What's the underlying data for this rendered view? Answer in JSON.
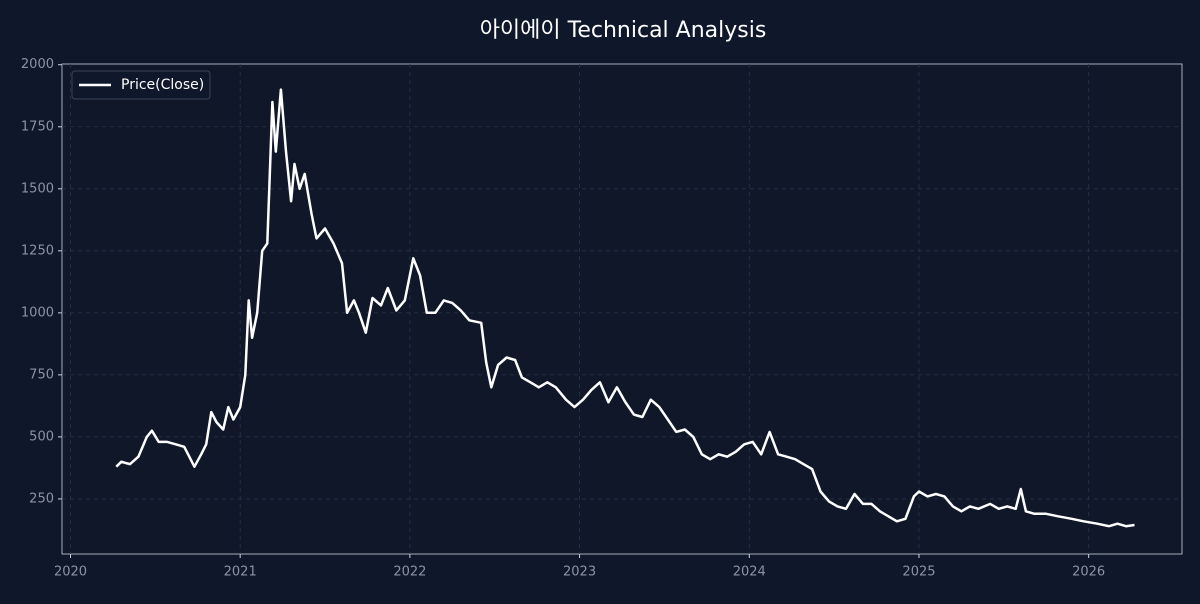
{
  "chart_data": {
    "type": "line",
    "title": "아이에이 Technical Analysis",
    "x": [
      2020.27,
      2020.3,
      2020.35,
      2020.4,
      2020.45,
      2020.48,
      2020.52,
      2020.57,
      2020.62,
      2020.67,
      2020.7,
      2020.73,
      2020.77,
      2020.8,
      2020.83,
      2020.86,
      2020.9,
      2020.93,
      2020.96,
      2021.0,
      2021.03,
      2021.05,
      2021.07,
      2021.1,
      2021.13,
      2021.16,
      2021.19,
      2021.21,
      2021.24,
      2021.27,
      2021.3,
      2021.32,
      2021.35,
      2021.38,
      2021.42,
      2021.45,
      2021.5,
      2021.55,
      2021.6,
      2021.63,
      2021.67,
      2021.7,
      2021.74,
      2021.78,
      2021.83,
      2021.87,
      2021.92,
      2021.97,
      2022.02,
      2022.06,
      2022.1,
      2022.15,
      2022.2,
      2022.25,
      2022.3,
      2022.35,
      2022.42,
      2022.45,
      2022.48,
      2022.52,
      2022.57,
      2022.62,
      2022.66,
      2022.71,
      2022.76,
      2022.81,
      2022.86,
      2022.92,
      2022.97,
      2023.02,
      2023.07,
      2023.12,
      2023.17,
      2023.22,
      2023.27,
      2023.32,
      2023.37,
      2023.42,
      2023.47,
      2023.52,
      2023.57,
      2023.62,
      2023.67,
      2023.72,
      2023.77,
      2023.82,
      2023.87,
      2023.92,
      2023.97,
      2024.02,
      2024.07,
      2024.12,
      2024.17,
      2024.22,
      2024.27,
      2024.32,
      2024.37,
      2024.42,
      2024.47,
      2024.52,
      2024.57,
      2024.62,
      2024.67,
      2024.72,
      2024.77,
      2024.82,
      2024.87,
      2024.92,
      2024.97,
      2025.0,
      2025.05,
      2025.1,
      2025.15,
      2025.2,
      2025.25,
      2025.3,
      2025.35,
      2025.42,
      2025.47,
      2025.52,
      2025.57,
      2025.6,
      2025.63,
      2025.68,
      2025.75,
      2025.82,
      2025.9,
      2025.97,
      2026.05,
      2026.12,
      2026.17,
      2026.22,
      2026.27
    ],
    "series": [
      {
        "name": "Price(Close)",
        "color": "#ffffff",
        "values": [
          380,
          400,
          390,
          420,
          500,
          525,
          480,
          480,
          470,
          460,
          420,
          380,
          430,
          470,
          600,
          560,
          530,
          620,
          570,
          620,
          750,
          1050,
          900,
          1000,
          1250,
          1280,
          1850,
          1650,
          1900,
          1650,
          1450,
          1600,
          1500,
          1560,
          1400,
          1300,
          1340,
          1280,
          1200,
          1000,
          1050,
          1000,
          920,
          1060,
          1030,
          1100,
          1010,
          1050,
          1220,
          1150,
          1000,
          1000,
          1050,
          1040,
          1010,
          970,
          960,
          800,
          700,
          790,
          820,
          810,
          740,
          720,
          700,
          720,
          700,
          650,
          620,
          650,
          690,
          720,
          640,
          700,
          640,
          590,
          580,
          650,
          620,
          570,
          520,
          530,
          500,
          430,
          410,
          430,
          420,
          440,
          470,
          480,
          430,
          520,
          430,
          420,
          410,
          390,
          370,
          280,
          240,
          220,
          210,
          270,
          230,
          230,
          200,
          180,
          160,
          170,
          260,
          280,
          260,
          270,
          260,
          220,
          200,
          220,
          210,
          230,
          210,
          220,
          210,
          290,
          200,
          190,
          190,
          180,
          170,
          160,
          150,
          140,
          150,
          140,
          145
        ]
      }
    ],
    "xlim": [
      2019.95,
      2026.55
    ],
    "xticks": [
      2020,
      2021,
      2022,
      2023,
      2024,
      2025,
      2026
    ],
    "ylim": [
      28,
      2003
    ],
    "yticks": [
      250,
      500,
      750,
      1000,
      1250,
      1500,
      1750,
      2000
    ],
    "grid": true,
    "legend": "upper left"
  }
}
